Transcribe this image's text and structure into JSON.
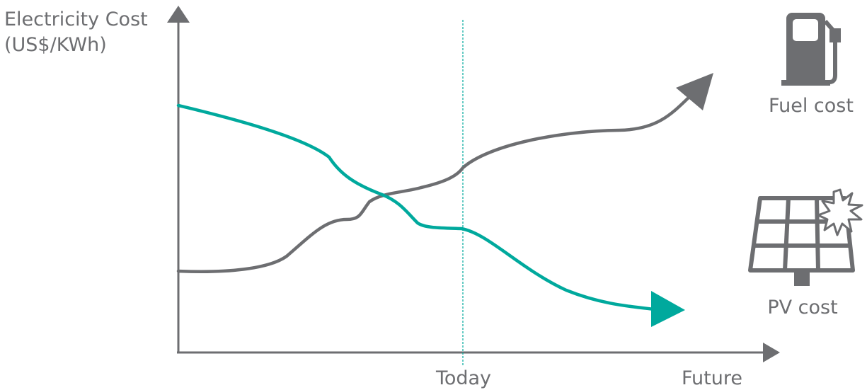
{
  "chart_data": {
    "type": "line",
    "ylabel_line1": "Electricity Cost",
    "ylabel_line2": "(US$/KWh)",
    "x_tick_today": "Today",
    "x_tick_future": "Future",
    "legend_fuel": "Fuel cost",
    "legend_pv": "PV cost",
    "colors": {
      "fuel": "#6d6e71",
      "pv": "#00a99d",
      "axis": "#6d6e71",
      "today_line": "#00a99d"
    },
    "icons": {
      "fuel": "fuel-pump-icon",
      "pv": "solar-panel-icon"
    }
  }
}
